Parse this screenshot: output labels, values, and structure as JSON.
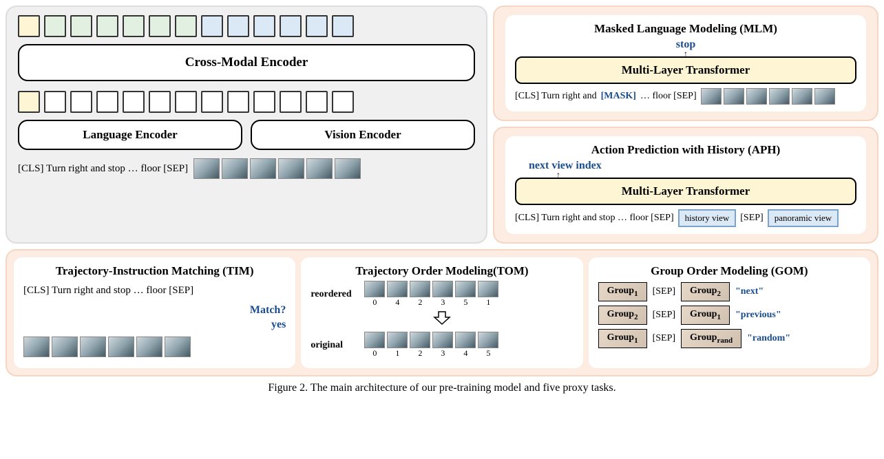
{
  "colors": {
    "panel_gray_bg": "#f0f0f0",
    "panel_peach_bg": "#fdece1",
    "token_yellow": "#fdf5d4",
    "token_green": "#e1f0e1",
    "token_blue": "#dbe8f5",
    "accent_text": "#1a4d8f",
    "transformer_bg": "#fdf5d4"
  },
  "main": {
    "top_tokens": [
      "y",
      "g",
      "g",
      "g",
      "g",
      "g",
      "g",
      "b",
      "b",
      "b",
      "b",
      "b",
      "b"
    ],
    "cross_modal": "Cross-Modal Encoder",
    "bot_tokens": [
      "y",
      "w",
      "w",
      "w",
      "w",
      "w",
      "w",
      "w",
      "w",
      "w",
      "w",
      "w",
      "w"
    ],
    "lang_enc": "Language Encoder",
    "vis_enc": "Vision Encoder",
    "input_text": "[CLS] Turn right and stop … floor  [SEP]",
    "thumb_count": 6
  },
  "mlm": {
    "title": "Masked Language Modeling (MLM)",
    "pred": "stop",
    "box": "Multi-Layer Transformer",
    "inp_pre": "[CLS] Turn right and ",
    "mask": "[MASK]",
    "inp_post": " … floor [SEP]",
    "thumb_count": 6
  },
  "aph": {
    "title": "Action Prediction with History (APH)",
    "pred": "next view index",
    "box": "Multi-Layer Transformer",
    "inp": "[CLS] Turn right and stop … floor [SEP]",
    "hist": "history view",
    "sep": "[SEP]",
    "pano": "panoramic view"
  },
  "tim": {
    "title": "Trajectory-Instruction Matching (TIM)",
    "inp": "[CLS] Turn right and stop … floor [SEP]",
    "q": "Match?",
    "a": "yes",
    "thumb_count": 6
  },
  "tom": {
    "title": "Trajectory Order Modeling(TOM)",
    "reordered_lbl": "reordered",
    "reordered_idx": [
      0,
      4,
      2,
      3,
      5,
      1
    ],
    "original_lbl": "original",
    "original_idx": [
      0,
      1,
      2,
      3,
      4,
      5
    ]
  },
  "gom": {
    "title": "Group Order Modeling (GOM)",
    "rows": [
      {
        "l": "Group",
        "ls": "1",
        "r": "Group",
        "rs": "2",
        "lbl": "\"next\""
      },
      {
        "l": "Group",
        "ls": "2",
        "r": "Group",
        "rs": "1",
        "lbl": "\"previous\""
      },
      {
        "l": "Group",
        "ls": "1",
        "r": "Group",
        "rs": "rand",
        "lbl": "\"random\""
      }
    ],
    "sep": "[SEP]"
  },
  "caption": "Figure 2. The main architecture of our pre-training model and five proxy tasks."
}
